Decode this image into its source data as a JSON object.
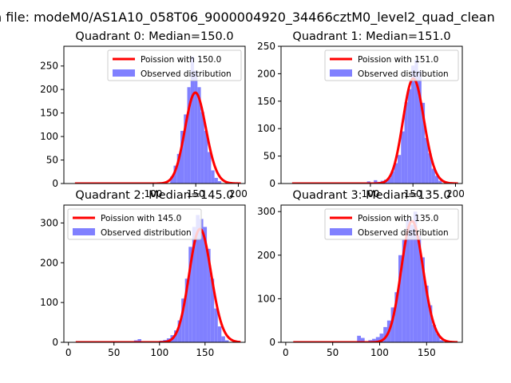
{
  "suptitle": "n file: modeM0/AS1A10_058T06_9000004920_34466cztM0_level2_quad_clean",
  "chart_data": [
    {
      "type": "bar",
      "title": "Quadrant 0: Median=150.0",
      "xlim": [
        -5,
        208
      ],
      "ylim": [
        0,
        292
      ],
      "xticks": [
        100,
        150,
        200
      ],
      "yticks": [
        0,
        50,
        100,
        150,
        200,
        250
      ],
      "bin_width": 4,
      "bin_starts": [
        120,
        124,
        128,
        132,
        136,
        140,
        144,
        148,
        152,
        156,
        160,
        164,
        168,
        172,
        176
      ],
      "values": [
        15,
        38,
        63,
        112,
        147,
        205,
        270,
        240,
        205,
        152,
        112,
        67,
        28,
        12,
        5
      ],
      "poisson_mean": 150,
      "poisson_total": 5940,
      "legend": {
        "line": "Poission with 150.0",
        "bars": "Observed distribution",
        "loc": "upper right"
      },
      "colors": {
        "line": "#ff0000",
        "bars": "#8080ff"
      }
    },
    {
      "type": "bar",
      "title": "Quadrant 1: Median=151.0",
      "xlim": [
        -5,
        208
      ],
      "ylim": [
        0,
        250
      ],
      "xticks": [
        100,
        150,
        200
      ],
      "yticks": [
        0,
        50,
        100,
        150,
        200,
        250
      ],
      "bin_width": 4,
      "bin_starts": [
        56,
        64,
        88,
        96,
        104,
        108,
        112,
        116,
        120,
        124,
        128,
        132,
        136,
        140,
        144,
        148,
        152,
        156,
        160,
        164,
        168,
        172,
        176,
        180
      ],
      "values": [
        2,
        1,
        2,
        4,
        6,
        3,
        5,
        7,
        10,
        22,
        37,
        52,
        95,
        148,
        172,
        215,
        225,
        205,
        147,
        83,
        55,
        27,
        14,
        5
      ],
      "poisson_mean": 151,
      "poisson_total": 5890,
      "legend": {
        "line": "Poission with 151.0",
        "bars": "Observed distribution",
        "loc": "upper right"
      },
      "colors": {
        "line": "#ff0000",
        "bars": "#8080ff"
      }
    },
    {
      "type": "bar",
      "title": "Quadrant 2: Median=145.0",
      "xlim": [
        -5,
        194
      ],
      "ylim": [
        0,
        345
      ],
      "xticks": [
        0,
        50,
        100,
        150
      ],
      "yticks": [
        0,
        100,
        200,
        300
      ],
      "bin_width": 4,
      "bin_starts": [
        72,
        76,
        100,
        104,
        108,
        112,
        116,
        120,
        124,
        128,
        132,
        136,
        140,
        144,
        148,
        152,
        156,
        160,
        164,
        168,
        172
      ],
      "values": [
        5,
        8,
        4,
        6,
        10,
        18,
        30,
        55,
        110,
        160,
        240,
        290,
        320,
        310,
        290,
        235,
        160,
        85,
        40,
        15,
        5
      ],
      "poisson_mean": 145,
      "poisson_total": 8600,
      "legend": {
        "line": "Poission with 145.0",
        "bars": "Observed distribution",
        "loc": "upper left"
      },
      "colors": {
        "line": "#ff0000",
        "bars": "#8080ff"
      }
    },
    {
      "type": "bar",
      "title": "Quadrant 3: Median=135.0",
      "xlim": [
        -5,
        188
      ],
      "ylim": [
        0,
        315
      ],
      "xticks": [
        0,
        50,
        100,
        150
      ],
      "yticks": [
        0,
        100,
        200,
        300
      ],
      "bin_width": 4,
      "bin_starts": [
        76,
        80,
        88,
        92,
        96,
        100,
        104,
        108,
        112,
        116,
        120,
        124,
        128,
        132,
        136,
        140,
        144,
        148,
        152,
        156,
        160,
        164
      ],
      "values": [
        15,
        10,
        5,
        8,
        12,
        20,
        35,
        50,
        80,
        115,
        200,
        235,
        282,
        270,
        300,
        245,
        195,
        130,
        85,
        40,
        20,
        5
      ],
      "poisson_mean": 135,
      "poisson_total": 8100,
      "legend": {
        "line": "Poission with 135.0",
        "bars": "Observed distribution",
        "loc": "upper right"
      },
      "colors": {
        "line": "#ff0000",
        "bars": "#8080ff"
      }
    }
  ]
}
